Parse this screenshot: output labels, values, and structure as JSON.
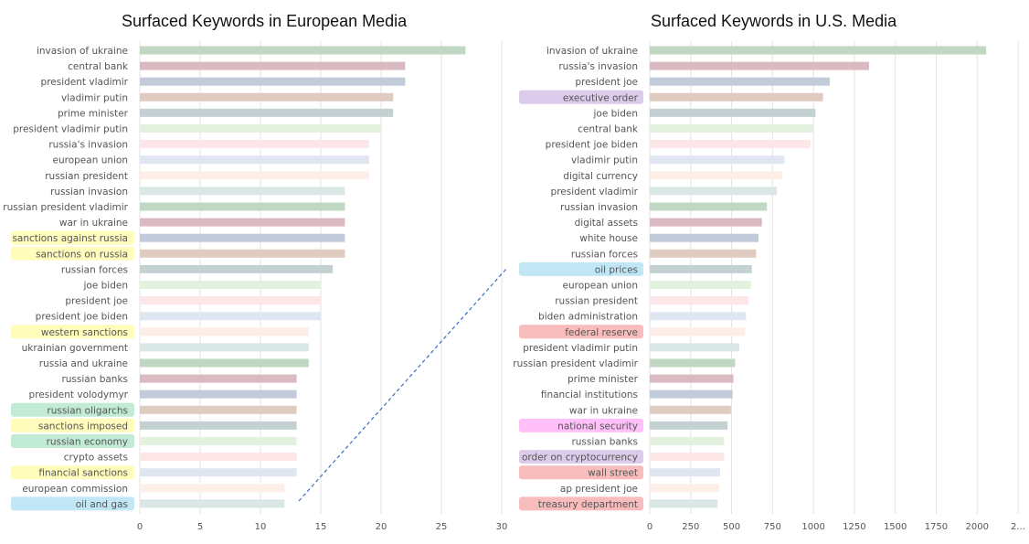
{
  "colors": {
    "yellow": "#fffcbc",
    "green": "#c1ebd5",
    "blue": "#c1e7f6",
    "purple": "#dccbea",
    "red": "#f9bcbc",
    "pink": "#ffbff8",
    "bar_palette": [
      "#c0d8c2",
      "#dab9c1",
      "#c2cbda",
      "#dfcbbf",
      "#c4d1d3",
      "#e2f2de",
      "#fce6e8",
      "#dfe6f1",
      "#fdefe8",
      "#d9e7e6"
    ]
  },
  "chart_data": [
    {
      "type": "bar",
      "orientation": "horizontal",
      "title": "Surfaced Keywords in European Media",
      "xlim": [
        0,
        30
      ],
      "xticks": [
        "0",
        "5",
        "10",
        "15",
        "20",
        "25",
        "30"
      ],
      "grid": true,
      "categories": [
        "invasion of ukraine",
        "central bank",
        "president vladimir",
        "vladimir putin",
        "prime minister",
        "president vladimir putin",
        "russia's invasion",
        "european union",
        "russian president",
        "russian invasion",
        "russian president vladimir",
        "war in ukraine",
        "sanctions against russia",
        "sanctions on russia",
        "russian forces",
        "joe biden",
        "president joe",
        "president joe biden",
        "western sanctions",
        "ukrainian government",
        "russia and ukraine",
        "russian banks",
        "president volodymyr",
        "russian oligarchs",
        "sanctions imposed",
        "russian economy",
        "crypto assets",
        "financial sanctions",
        "european commission",
        "oil and gas"
      ],
      "values": [
        27,
        22,
        22,
        21,
        21,
        20,
        19,
        19,
        19,
        17,
        17,
        17,
        17,
        17,
        16,
        15,
        15,
        15,
        14,
        14,
        14,
        13,
        13,
        13,
        13,
        13,
        13,
        13,
        12,
        12
      ],
      "highlights": {
        "sanctions against russia": "yellow",
        "sanctions on russia": "yellow",
        "western sanctions": "yellow",
        "russian oligarchs": "green",
        "sanctions imposed": "yellow",
        "russian economy": "green",
        "financial sanctions": "yellow",
        "oil and gas": "blue"
      }
    },
    {
      "type": "bar",
      "orientation": "horizontal",
      "title": "Surfaced Keywords in U.S. Media",
      "xlim": [
        0,
        2200
      ],
      "xticks": [
        "0",
        "250",
        "500",
        "750",
        "1000",
        "1250",
        "1500",
        "1750",
        "2000",
        "2..."
      ],
      "grid": true,
      "categories": [
        "invasion of ukraine",
        "russia's invasion",
        "president joe",
        "executive order",
        "joe biden",
        "central bank",
        "president joe biden",
        "vladimir putin",
        "digital currency",
        "president vladimir",
        "russian invasion",
        "digital assets",
        "white house",
        "russian forces",
        "oil prices",
        "european union",
        "russian president",
        "biden administration",
        "federal reserve",
        "president vladimir putin",
        "russian president vladimir",
        "prime minister",
        "financial institutions",
        "war in ukraine",
        "national security",
        "russian banks",
        "order on cryptocurrency",
        "wall street",
        "ap president joe",
        "treasury department"
      ],
      "values": [
        2010,
        1310,
        1075,
        1035,
        990,
        975,
        960,
        805,
        790,
        760,
        700,
        670,
        650,
        635,
        610,
        605,
        590,
        575,
        570,
        535,
        510,
        500,
        495,
        485,
        465,
        445,
        445,
        420,
        415,
        405
      ],
      "highlights": {
        "executive order": "purple",
        "oil prices": "blue",
        "federal reserve": "red",
        "national security": "pink",
        "order on cryptocurrency": "purple",
        "wall street": "red",
        "treasury department": "red"
      }
    }
  ]
}
